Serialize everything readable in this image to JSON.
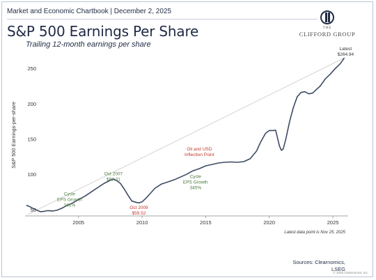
{
  "header": {
    "line": "Market and Economic Chartbook | December 2, 2025",
    "title": "S&P 500 Earnings Per Share",
    "subtitle": "Trailing 12-month earnings per share"
  },
  "logo": {
    "small_text": "THE",
    "name": "CLIFFORD GROUP"
  },
  "footer": {
    "footnote": "Latest data point is Nov 25, 2025",
    "sources_line1": "Sources: Clearnomics,",
    "sources_line2": "LSEG",
    "copyright": "© 2025 Clearnomics, Inc."
  },
  "colors": {
    "line": "#3d4a63",
    "trend": "#c9c9c9",
    "green": "#4a7a3a",
    "red": "#c0392b",
    "axis": "#888888"
  },
  "chart_data": {
    "type": "line",
    "ylabel": "S&P 500 Earnings-per-share",
    "xlabel": "",
    "xlim": [
      2000.8,
      2026.2
    ],
    "ylim": [
      43,
      268
    ],
    "xticks": [
      2005,
      2010,
      2015,
      2020,
      2025
    ],
    "yticks": [
      50,
      100,
      150,
      200,
      250
    ],
    "series": [
      {
        "values": [
          [
            2000.9,
            56.0
          ],
          [
            2001.2,
            54.0
          ],
          [
            2001.5,
            51.0
          ],
          [
            2001.8,
            48.5
          ],
          [
            2002.0,
            47.0
          ],
          [
            2002.3,
            47.5
          ],
          [
            2002.6,
            48.5
          ],
          [
            2003.0,
            48.0
          ],
          [
            2003.3,
            49.0
          ],
          [
            2003.7,
            52.0
          ],
          [
            2004.0,
            55.0
          ],
          [
            2004.5,
            59.0
          ],
          [
            2005.0,
            64.0
          ],
          [
            2005.5,
            69.0
          ],
          [
            2006.0,
            75.0
          ],
          [
            2006.5,
            81.0
          ],
          [
            2007.0,
            87.0
          ],
          [
            2007.5,
            91.5
          ],
          [
            2007.75,
            93.31
          ],
          [
            2008.0,
            91.0
          ],
          [
            2008.3,
            87.0
          ],
          [
            2008.6,
            79.0
          ],
          [
            2008.9,
            70.0
          ],
          [
            2009.2,
            62.0
          ],
          [
            2009.6,
            60.0
          ],
          [
            2009.75,
            59.52
          ],
          [
            2010.0,
            61.0
          ],
          [
            2010.3,
            66.0
          ],
          [
            2010.6,
            72.0
          ],
          [
            2011.0,
            80.0
          ],
          [
            2011.5,
            86.0
          ],
          [
            2012.0,
            89.0
          ],
          [
            2012.5,
            92.0
          ],
          [
            2013.0,
            96.0
          ],
          [
            2013.5,
            100.0
          ],
          [
            2014.0,
            105.0
          ],
          [
            2014.5,
            108.0
          ],
          [
            2015.0,
            112.0
          ],
          [
            2015.5,
            114.0
          ],
          [
            2016.0,
            116.0
          ],
          [
            2016.5,
            117.0
          ],
          [
            2017.0,
            117.5
          ],
          [
            2017.5,
            117.0
          ],
          [
            2018.0,
            118.0
          ],
          [
            2018.5,
            122.0
          ],
          [
            2019.0,
            133.0
          ],
          [
            2019.3,
            145.0
          ],
          [
            2019.7,
            158.0
          ],
          [
            2020.0,
            162.0
          ],
          [
            2020.3,
            162.0
          ],
          [
            2020.5,
            162.5
          ],
          [
            2020.6,
            155.0
          ],
          [
            2020.8,
            140.0
          ],
          [
            2020.95,
            134.0
          ],
          [
            2021.1,
            136.0
          ],
          [
            2021.3,
            150.0
          ],
          [
            2021.6,
            175.0
          ],
          [
            2021.9,
            195.0
          ],
          [
            2022.2,
            210.0
          ],
          [
            2022.5,
            216.0
          ],
          [
            2022.8,
            217.0
          ],
          [
            2023.1,
            214.0
          ],
          [
            2023.4,
            215.0
          ],
          [
            2023.7,
            220.0
          ],
          [
            2024.0,
            225.0
          ],
          [
            2024.4,
            235.0
          ],
          [
            2024.8,
            242.0
          ],
          [
            2025.2,
            250.0
          ],
          [
            2025.6,
            257.0
          ],
          [
            2025.9,
            264.94
          ]
        ]
      }
    ],
    "trendline": [
      [
        2001.0,
        43.0
      ],
      [
        2025.9,
        264.94
      ]
    ],
    "annotations": [
      {
        "lines": [
          "Cycle",
          "EPS Growth",
          "101%"
        ],
        "at": [
          2004.3,
          70
        ],
        "color": "green"
      },
      {
        "lines": [
          "Oct 2007",
          "$93.31"
        ],
        "at": [
          2007.75,
          99.0
        ],
        "color": "green"
      },
      {
        "lines": [
          "Oct 2009",
          "$59.52"
        ],
        "at": [
          2009.75,
          51.0
        ],
        "color": "red"
      },
      {
        "lines": [
          "Oil and USD",
          "Inflection Point"
        ],
        "at": [
          2014.5,
          134.0
        ],
        "color": "red"
      },
      {
        "lines": [
          "Cycle",
          "EPS Growth",
          "345%"
        ],
        "at": [
          2014.2,
          95.0
        ],
        "color": "green"
      },
      {
        "lines": [
          "Latest",
          "$264.94"
        ],
        "at": [
          2026.0,
          276.0
        ],
        "color": "dark"
      }
    ]
  }
}
